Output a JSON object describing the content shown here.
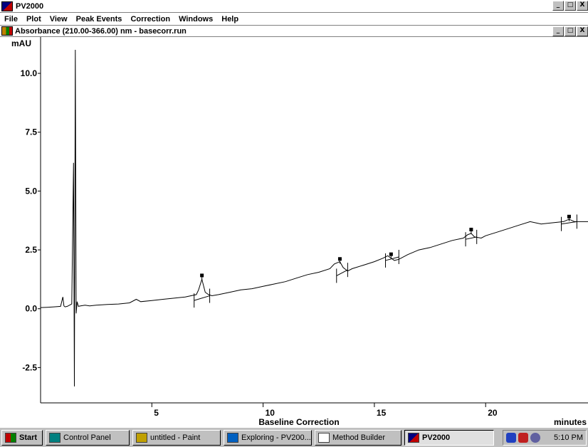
{
  "app": {
    "title": "PV2000"
  },
  "menu": [
    "File",
    "Plot",
    "View",
    "Peak Events",
    "Correction",
    "Windows",
    "Help"
  ],
  "window_buttons": [
    "_",
    "□",
    "X"
  ],
  "document": {
    "title": "Absorbance (210.00-366.00) nm - basecorr.run"
  },
  "colors": {
    "trace": "#000000",
    "marker": "#000000",
    "taskbar": "#c0c0c0"
  },
  "chart_data": {
    "type": "line",
    "title": "Baseline Correction",
    "ylabel": "mAU",
    "xlabel": "minutes",
    "xlim": [
      0,
      24.6
    ],
    "ylim": [
      -4.0,
      11.0
    ],
    "xticks": [
      5,
      10,
      15,
      20
    ],
    "xtick_labels": [
      "5",
      "10",
      "15",
      "20"
    ],
    "yticks": [
      10.0,
      7.5,
      5.0,
      2.5,
      0.0,
      -2.5
    ],
    "ytick_labels": [
      "10.0",
      "7.5",
      "5.0",
      "2.5",
      "0.0",
      "-2.5"
    ],
    "series": [
      {
        "values_x": [
          0,
          0.3,
          0.6,
          0.9,
          1.0,
          1.05,
          1.1,
          1.2,
          1.4,
          1.48,
          1.52,
          1.56,
          1.6,
          1.64,
          1.7,
          1.8,
          2.0,
          2.2,
          2.5,
          3.0,
          3.5,
          4.0,
          4.3,
          4.5,
          5.0,
          5.5,
          6.0,
          6.5,
          7.0,
          7.1,
          7.25,
          7.4,
          7.55,
          7.7,
          8.0,
          8.5,
          9.0,
          9.5,
          10.0,
          10.5,
          11.0,
          11.5,
          12.0,
          12.5,
          13.0,
          13.2,
          13.45,
          13.6,
          13.8,
          14.0,
          14.5,
          15.0,
          15.4,
          15.6,
          15.75,
          15.9,
          16.1,
          16.5,
          17.0,
          17.5,
          18.0,
          18.5,
          19.0,
          19.2,
          19.35,
          19.5,
          19.8,
          20.0,
          20.5,
          21.0,
          21.5,
          22.0,
          22.5,
          23.0,
          23.5,
          23.75,
          24.0,
          24.3,
          24.6
        ],
        "values_y": [
          0.05,
          0.06,
          0.08,
          0.1,
          0.5,
          0.12,
          0.08,
          0.1,
          0.2,
          6.2,
          -3.3,
          11.0,
          -0.2,
          0.3,
          0.1,
          0.12,
          0.15,
          0.12,
          0.15,
          0.18,
          0.2,
          0.25,
          0.4,
          0.3,
          0.35,
          0.4,
          0.45,
          0.5,
          0.6,
          0.8,
          1.25,
          0.7,
          0.6,
          0.55,
          0.6,
          0.7,
          0.8,
          0.85,
          0.95,
          1.05,
          1.15,
          1.3,
          1.45,
          1.55,
          1.7,
          1.9,
          2.0,
          1.75,
          1.6,
          1.7,
          1.85,
          2.0,
          2.15,
          2.25,
          2.15,
          2.05,
          2.1,
          2.3,
          2.5,
          2.6,
          2.75,
          2.9,
          3.0,
          3.15,
          3.2,
          3.05,
          3.0,
          3.1,
          3.25,
          3.4,
          3.55,
          3.7,
          3.6,
          3.65,
          3.7,
          3.8,
          3.7,
          3.7,
          3.7
        ]
      }
    ],
    "baselines": [
      [
        6.9,
        0.35,
        7.6,
        0.55
      ],
      [
        13.3,
        1.4,
        13.8,
        1.65
      ],
      [
        15.5,
        2.05,
        16.1,
        2.2
      ],
      [
        19.1,
        2.95,
        19.6,
        3.05
      ],
      [
        23.4,
        3.6,
        24.1,
        3.7
      ]
    ],
    "markers": [
      [
        7.25,
        1.4
      ],
      [
        13.45,
        2.1
      ],
      [
        15.75,
        2.3
      ],
      [
        19.35,
        3.35
      ],
      [
        23.75,
        3.9
      ]
    ]
  },
  "taskbar": {
    "start": "Start",
    "items": [
      {
        "label": "Control Panel",
        "icon": "control-panel-icon",
        "active": false,
        "color": "#008080"
      },
      {
        "label": "untitled - Paint",
        "icon": "paint-icon",
        "active": false,
        "color": "#c0a000"
      },
      {
        "label": "Exploring - PV200...",
        "icon": "explorer-icon",
        "active": false,
        "color": "#0060c0"
      },
      {
        "label": "Method Builder",
        "icon": "method-builder-icon",
        "active": false,
        "color": "#ffffff"
      },
      {
        "label": "PV2000",
        "icon": "pv2000-icon",
        "active": true,
        "color": "#000080"
      }
    ],
    "clock": "5:10 PM"
  }
}
